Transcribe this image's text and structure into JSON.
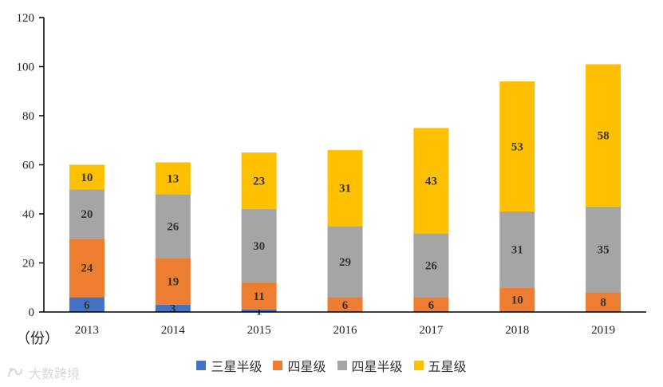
{
  "chart_data": {
    "type": "bar",
    "stacked": true,
    "categories": [
      "2013",
      "2014",
      "2015",
      "2016",
      "2017",
      "2018",
      "2019"
    ],
    "series": [
      {
        "name": "三星半级",
        "color": "#4472C4",
        "values": [
          6,
          3,
          1,
          0,
          0,
          0,
          0
        ]
      },
      {
        "name": "四星级",
        "color": "#ED7D31",
        "values": [
          24,
          19,
          11,
          6,
          6,
          10,
          8
        ]
      },
      {
        "name": "四星半级",
        "color": "#A5A5A5",
        "values": [
          20,
          26,
          30,
          29,
          26,
          31,
          35
        ]
      },
      {
        "name": "五星级",
        "color": "#FFC000",
        "values": [
          10,
          13,
          23,
          31,
          43,
          53,
          58
        ]
      }
    ],
    "ylim": [
      0,
      120
    ],
    "yticks": [
      0,
      20,
      40,
      60,
      80,
      100,
      120
    ],
    "ylabel": "（份）",
    "legend_position": "bottom"
  },
  "watermark": {
    "text": "大数跨境",
    "icon": "brand-logo-icon"
  }
}
